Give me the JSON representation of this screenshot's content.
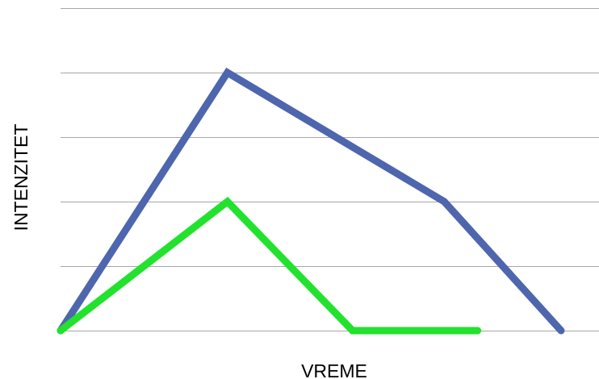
{
  "chart_data": {
    "type": "line",
    "title": "",
    "xlabel": "VREME",
    "ylabel": "INTENZITET",
    "x": [
      0,
      1,
      2,
      3
    ],
    "series": [
      {
        "values": [
          0,
          4,
          2,
          0
        ],
        "color": "#4e66ad"
      },
      {
        "values": [
          0,
          2,
          0,
          0
        ],
        "color": "#22e22e"
      }
    ],
    "series_x": [
      [
        0,
        1,
        2.3,
        3
      ],
      [
        0,
        1,
        1.75,
        2.5
      ]
    ],
    "xlim": [
      0,
      3
    ],
    "ylim": [
      0,
      5
    ],
    "grid": true,
    "legend": "none"
  }
}
